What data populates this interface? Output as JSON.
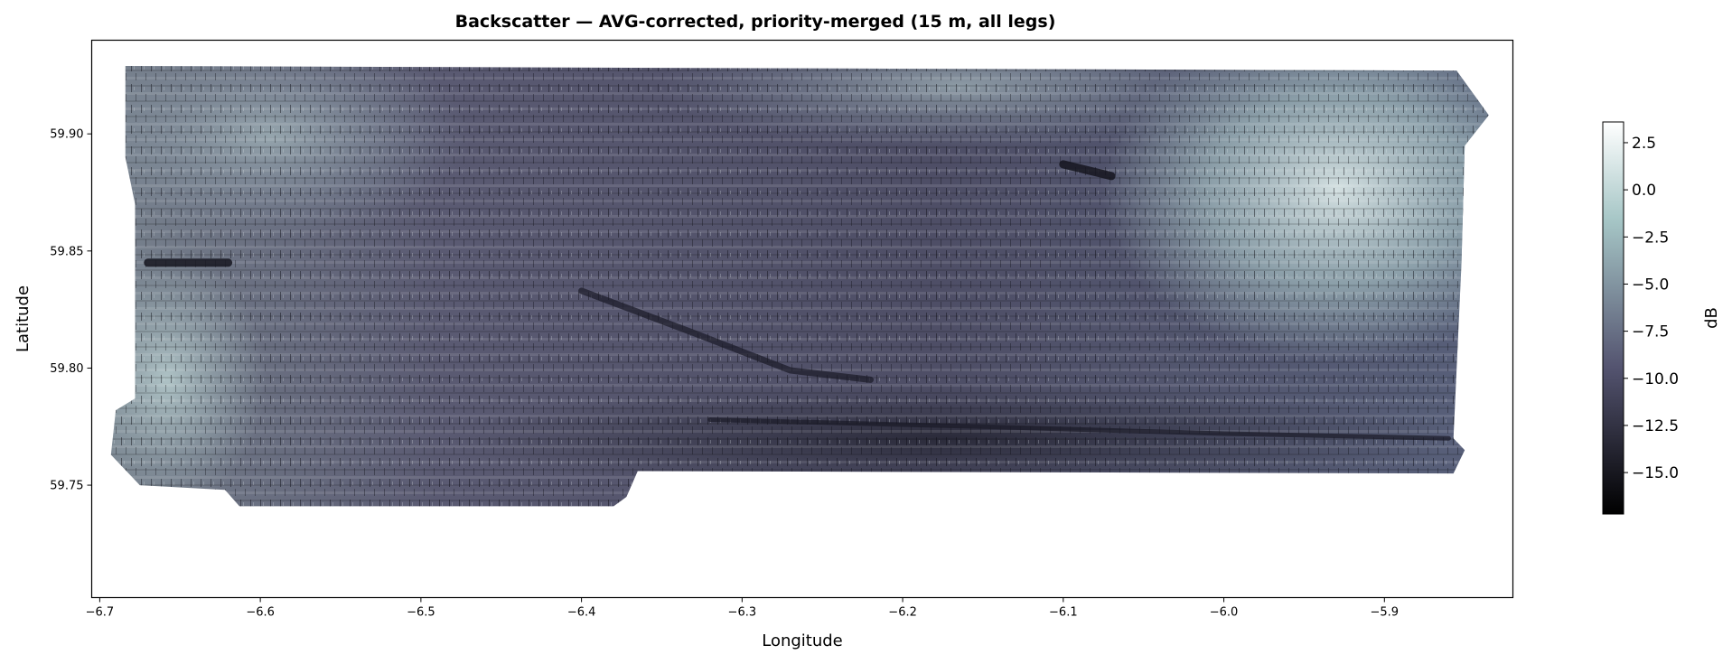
{
  "chart_data": {
    "type": "heatmap",
    "title": "Backscatter — AVG-corrected, priority-merged (15 m, all legs)",
    "xlabel": "Longitude",
    "ylabel": "Latitude",
    "xlim": [
      -6.705,
      -5.82
    ],
    "ylim": [
      59.702,
      59.94
    ],
    "x_ticks": [
      -6.7,
      -6.6,
      -6.5,
      -6.4,
      -6.3,
      -6.2,
      -6.1,
      -6.0,
      -5.9
    ],
    "x_tick_labels": [
      "−6.7",
      "−6.6",
      "−6.5",
      "−6.4",
      "−6.3",
      "−6.2",
      "−6.1",
      "−6.0",
      "−5.9"
    ],
    "y_ticks": [
      59.75,
      59.8,
      59.85,
      59.9
    ],
    "y_tick_labels": [
      "59.75",
      "59.80",
      "59.85",
      "59.90"
    ],
    "grid": false,
    "colormap": "bone",
    "colors": {
      "low": "#000000",
      "mid": "#575772",
      "high_mid": "#a6c6c6",
      "high": "#ffffff"
    },
    "coverage_outline": [
      [
        -6.684,
        59.929
      ],
      [
        -5.855,
        59.927
      ],
      [
        -5.835,
        59.908
      ],
      [
        -5.85,
        59.895
      ],
      [
        -5.852,
        59.845
      ],
      [
        -5.857,
        59.77
      ],
      [
        -5.85,
        59.765
      ],
      [
        -5.857,
        59.755
      ],
      [
        -6.365,
        59.756
      ],
      [
        -6.372,
        59.745
      ],
      [
        -6.38,
        59.741
      ],
      [
        -6.613,
        59.741
      ],
      [
        -6.622,
        59.748
      ],
      [
        -6.675,
        59.75
      ],
      [
        -6.693,
        59.763
      ],
      [
        -6.69,
        59.782
      ],
      [
        -6.678,
        59.787
      ],
      [
        -6.678,
        59.87
      ],
      [
        -6.684,
        59.89
      ]
    ],
    "features": [
      {
        "kind": "dark-lineament",
        "path": [
          [
            -6.4,
            59.833
          ],
          [
            -6.33,
            59.815
          ],
          [
            -6.27,
            59.799
          ],
          [
            -6.22,
            59.795
          ]
        ]
      },
      {
        "kind": "dark-lineament",
        "path": [
          [
            -6.32,
            59.778
          ],
          [
            -6.15,
            59.775
          ],
          [
            -6.0,
            59.772
          ],
          [
            -5.86,
            59.77
          ]
        ]
      },
      {
        "kind": "dark-patch",
        "path": [
          [
            -6.67,
            59.845
          ],
          [
            -6.62,
            59.845
          ]
        ]
      },
      {
        "kind": "dark-patch",
        "path": [
          [
            -6.1,
            59.887
          ],
          [
            -6.07,
            59.882
          ]
        ]
      }
    ],
    "colorbar": {
      "label": "dB",
      "range": [
        -17.2,
        3.6
      ],
      "ticks": [
        2.5,
        0.0,
        -2.5,
        -5.0,
        -7.5,
        -10.0,
        -12.5,
        -15.0
      ],
      "tick_labels": [
        "2.5",
        "0.0",
        "−2.5",
        "−5.0",
        "−7.5",
        "−10.0",
        "−12.5",
        "−15.0"
      ]
    }
  }
}
